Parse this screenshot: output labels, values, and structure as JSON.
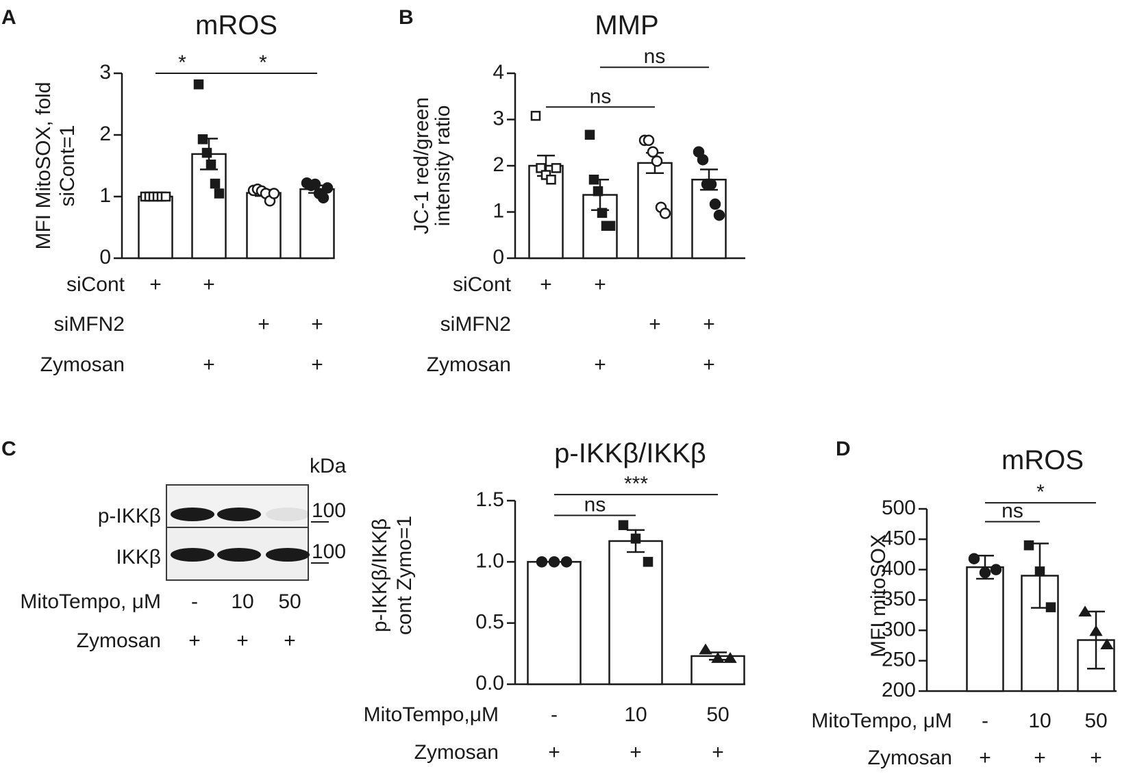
{
  "panel_labels": [
    "A",
    "B",
    "C",
    "D"
  ],
  "chart_data": [
    {
      "panel": "A",
      "type": "bar",
      "title": "mROS",
      "ylabel": [
        "MFI MitoSOX, fold",
        "siCont=1"
      ],
      "ylim": [
        0,
        3
      ],
      "yticks": [
        "0",
        "1",
        "2",
        "3"
      ],
      "categories": [
        "siCont",
        "siCont + Zymosan",
        "siMFN2",
        "siMFN2 + Zymosan"
      ],
      "values": [
        1.0,
        1.69,
        1.06,
        1.12
      ],
      "sem": [
        0.03,
        0.25,
        0.05,
        0.06
      ],
      "points": [
        [
          1,
          1,
          1,
          1,
          1,
          1
        ],
        [
          2.82,
          1.93,
          1.71,
          1.52,
          1.21,
          1.05
        ],
        [
          1.1,
          1.12,
          1.09,
          1.05,
          0.93,
          1.05
        ],
        [
          1.22,
          1.18,
          1.2,
          1.05,
          0.98,
          1.14
        ]
      ],
      "markers": [
        "square-open",
        "square",
        "circle-open",
        "circle"
      ],
      "significance": [
        {
          "from": 0,
          "to": 1,
          "label": "*",
          "y": 3.0
        },
        {
          "from": 1,
          "to": 3,
          "label": "*",
          "y": 3.0
        }
      ],
      "conditions": [
        {
          "label": "siCont",
          "marks": [
            "+",
            "+",
            "",
            ""
          ]
        },
        {
          "label": "siMFN2",
          "marks": [
            "",
            "",
            "+",
            "+"
          ]
        },
        {
          "label": "Zymosan",
          "marks": [
            "",
            "+",
            "",
            "+"
          ]
        }
      ]
    },
    {
      "panel": "B",
      "type": "bar",
      "title": "MMP",
      "ylabel": [
        "JC-1 red/green",
        "intensity ratio"
      ],
      "ylim": [
        0,
        4
      ],
      "yticks": [
        "0",
        "1",
        "2",
        "3",
        "4"
      ],
      "categories": [
        "siCont",
        "siCont + Zymosan",
        "siMFN2",
        "siMFN2 + Zymosan"
      ],
      "values": [
        2.0,
        1.37,
        2.06,
        1.7
      ],
      "sem": [
        0.22,
        0.33,
        0.22,
        0.22
      ],
      "points": [
        [
          3.08,
          1.95,
          1.8,
          1.7,
          1.95
        ],
        [
          2.67,
          1.7,
          1.45,
          0.98,
          0.7,
          0.7
        ],
        [
          2.55,
          2.55,
          2.3,
          2.1,
          1.1,
          0.97
        ],
        [
          2.3,
          2.13,
          1.6,
          1.6,
          1.17,
          0.93
        ]
      ],
      "markers": [
        "square-open",
        "square",
        "circle-open",
        "circle"
      ],
      "significance": [
        {
          "from": 0,
          "to": 2,
          "label": "ns",
          "y": 3.27
        },
        {
          "from": 1,
          "to": 3,
          "label": "ns",
          "y": 4.13
        }
      ],
      "conditions": [
        {
          "label": "siCont",
          "marks": [
            "+",
            "+",
            "",
            ""
          ]
        },
        {
          "label": "siMFN2",
          "marks": [
            "",
            "",
            "+",
            "+"
          ]
        },
        {
          "label": "Zymosan",
          "marks": [
            "",
            "+",
            "",
            "+"
          ]
        }
      ]
    },
    {
      "panel": "C",
      "type": "bar",
      "title": "p-IKKβ/IKKβ",
      "ylabel": [
        "p-IKKβ/IKKβ",
        "cont Zymo=1"
      ],
      "ylim": [
        0,
        1.5
      ],
      "yticks": [
        "0.0",
        "0.5",
        "1.0",
        "1.5"
      ],
      "categories": [
        "-",
        "10",
        "50"
      ],
      "values": [
        1.0,
        1.17,
        0.23
      ],
      "sem": [
        0.0,
        0.09,
        0.03
      ],
      "points": [
        [
          1.0,
          1.0,
          1.0
        ],
        [
          1.3,
          1.19,
          1.0
        ],
        [
          0.28,
          0.21,
          0.21
        ]
      ],
      "markers": [
        "circle",
        "square",
        "triangle"
      ],
      "significance": [
        {
          "from": 0,
          "to": 1,
          "label": "ns",
          "y": 1.38
        },
        {
          "from": 0,
          "to": 2,
          "label": "***",
          "y": 1.55
        }
      ],
      "conditions": [
        {
          "label": "MitoTempo,μM",
          "marks": [
            "-",
            "10",
            "50"
          ]
        },
        {
          "label": "Zymosan",
          "marks": [
            "+",
            "+",
            "+"
          ]
        }
      ]
    },
    {
      "panel": "D",
      "type": "bar",
      "title": "mROS",
      "ylabel": [
        "MFI mitoSOX"
      ],
      "ylim": [
        200,
        500
      ],
      "yticks": [
        "200",
        "250",
        "300",
        "350",
        "400",
        "450",
        "500"
      ],
      "categories": [
        "-",
        "10",
        "50"
      ],
      "values": [
        404,
        390,
        284
      ],
      "sd": [
        19,
        53,
        47
      ],
      "points": [
        [
          418,
          395,
          400
        ],
        [
          440,
          397,
          338
        ],
        [
          330,
          298,
          276
        ]
      ],
      "markers": [
        "circle",
        "square",
        "triangle"
      ],
      "significance": [
        {
          "from": 0,
          "to": 1,
          "label": "ns",
          "y": 479
        },
        {
          "from": 0,
          "to": 2,
          "label": "*",
          "y": 510
        }
      ],
      "conditions": [
        {
          "label": "MitoTempo, μM",
          "marks": [
            "-",
            "10",
            "50"
          ]
        },
        {
          "label": "Zymosan",
          "marks": [
            "+",
            "+",
            "+"
          ]
        }
      ]
    }
  ],
  "blot": {
    "kda_label": "kDa",
    "rows": [
      {
        "label": "p-IKKβ",
        "marker": "100",
        "intensities": [
          1.0,
          1.0,
          0.05
        ]
      },
      {
        "label": "IKKβ",
        "marker": "100",
        "intensities": [
          1.0,
          1.0,
          1.0
        ]
      }
    ],
    "conditions": [
      {
        "label": "MitoTempo, μM",
        "marks": [
          "-",
          "10",
          "50"
        ]
      },
      {
        "label": "Zymosan",
        "marks": [
          "+",
          "+",
          "+"
        ]
      }
    ]
  }
}
